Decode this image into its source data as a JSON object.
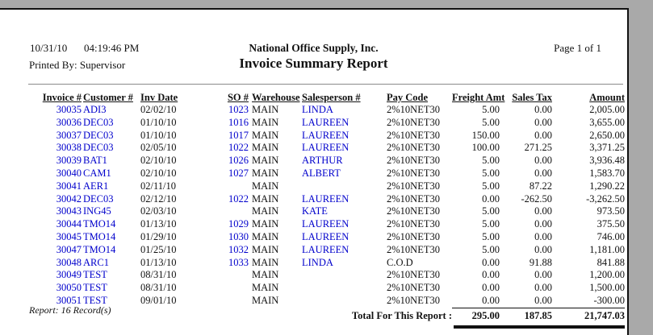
{
  "colors": {
    "chrome_gray": "#a9a9a9",
    "page_background": "#ffffff",
    "data_link_blue": "#0000cc",
    "text_black": "#111111"
  },
  "header": {
    "date": "10/31/10",
    "time": "04:19:46 PM",
    "printed_by": "Printed By: Supervisor",
    "company": "National Office Supply, Inc.",
    "report_title": "Invoice Summary Report",
    "page_label": "Page 1 of 1"
  },
  "table": {
    "columns": [
      {
        "key": "invoice",
        "label": "Invoice #",
        "align": "right",
        "color": "blue"
      },
      {
        "key": "customer",
        "label": "Customer #",
        "align": "left",
        "color": "blue"
      },
      {
        "key": "inv_date",
        "label": "Inv Date",
        "align": "left",
        "color": "black"
      },
      {
        "key": "so",
        "label": "SO #",
        "align": "right",
        "color": "blue"
      },
      {
        "key": "warehouse",
        "label": "Warehouse",
        "align": "left",
        "color": "black"
      },
      {
        "key": "salesperson",
        "label": "Salesperson #",
        "align": "left",
        "color": "blue"
      },
      {
        "key": "pay_code",
        "label": "Pay Code",
        "align": "left",
        "color": "black"
      },
      {
        "key": "freight_amt",
        "label": "Freight Amt",
        "align": "right",
        "color": "black"
      },
      {
        "key": "sales_tax",
        "label": "Sales Tax",
        "align": "right",
        "color": "black"
      },
      {
        "key": "amount",
        "label": "Amount",
        "align": "right",
        "color": "black"
      }
    ],
    "rows": [
      [
        "30035",
        "ADI3",
        "02/02/10",
        "1023",
        "MAIN",
        "LINDA",
        "2%10NET30",
        "5.00",
        "0.00",
        "2,005.00"
      ],
      [
        "30036",
        "DEC03",
        "01/10/10",
        "1016",
        "MAIN",
        "LAUREEN",
        "2%10NET30",
        "5.00",
        "0.00",
        "3,655.00"
      ],
      [
        "30037",
        "DEC03",
        "01/10/10",
        "1017",
        "MAIN",
        "LAUREEN",
        "2%10NET30",
        "150.00",
        "0.00",
        "2,650.00"
      ],
      [
        "30038",
        "DEC03",
        "02/05/10",
        "1022",
        "MAIN",
        "LAUREEN",
        "2%10NET30",
        "100.00",
        "271.25",
        "3,371.25"
      ],
      [
        "30039",
        "BAT1",
        "02/10/10",
        "1026",
        "MAIN",
        "ARTHUR",
        "2%10NET30",
        "5.00",
        "0.00",
        "3,936.48"
      ],
      [
        "30040",
        "CAM1",
        "02/10/10",
        "1027",
        "MAIN",
        "ALBERT",
        "2%10NET30",
        "5.00",
        "0.00",
        "1,583.70"
      ],
      [
        "30041",
        "AER1",
        "02/11/10",
        "",
        "MAIN",
        "",
        "2%10NET30",
        "5.00",
        "87.22",
        "1,290.22"
      ],
      [
        "30042",
        "DEC03",
        "02/12/10",
        "1022",
        "MAIN",
        "LAUREEN",
        "2%10NET30",
        "0.00",
        "-262.50",
        "-3,262.50"
      ],
      [
        "30043",
        "ING45",
        "02/03/10",
        "",
        "MAIN",
        "KATE",
        "2%10NET30",
        "5.00",
        "0.00",
        "973.50"
      ],
      [
        "30044",
        "TMO14",
        "01/13/10",
        "1029",
        "MAIN",
        "LAUREEN",
        "2%10NET30",
        "5.00",
        "0.00",
        "375.50"
      ],
      [
        "30045",
        "TMO14",
        "01/29/10",
        "1030",
        "MAIN",
        "LAUREEN",
        "2%10NET30",
        "5.00",
        "0.00",
        "746.00"
      ],
      [
        "30047",
        "TMO14",
        "01/25/10",
        "1032",
        "MAIN",
        "LAUREEN",
        "2%10NET30",
        "5.00",
        "0.00",
        "1,181.00"
      ],
      [
        "30048",
        "ARC1",
        "01/13/10",
        "1033",
        "MAIN",
        "LINDA",
        "C.O.D",
        "0.00",
        "91.88",
        "841.88"
      ],
      [
        "30049",
        "TEST",
        "08/31/10",
        "",
        "MAIN",
        "",
        "2%10NET30",
        "0.00",
        "0.00",
        "1,200.00"
      ],
      [
        "30050",
        "TEST",
        "08/31/10",
        "",
        "MAIN",
        "",
        "2%10NET30",
        "0.00",
        "0.00",
        "1,500.00"
      ],
      [
        "30051",
        "TEST",
        "09/01/10",
        "",
        "MAIN",
        "",
        "2%10NET30",
        "0.00",
        "0.00",
        "-300.00"
      ]
    ],
    "total_label": "Total For This Report :",
    "totals": {
      "freight_amt": "295.00",
      "sales_tax": "187.85",
      "amount": "21,747.03"
    }
  },
  "footer": {
    "record_count": "Report: 16 Record(s)"
  }
}
